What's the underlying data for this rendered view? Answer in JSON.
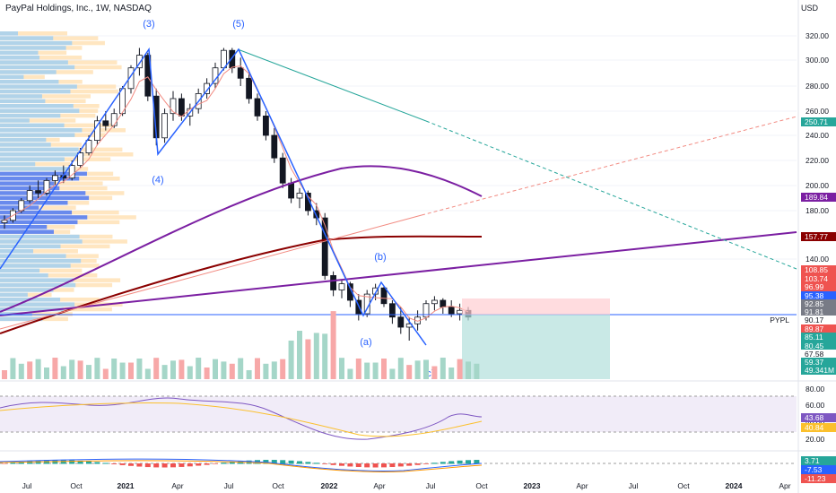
{
  "header": {
    "title": "PayPal Holdings, Inc., 1W, NASDAQ",
    "currency": "USD"
  },
  "colors": {
    "up": "#26a69a",
    "down": "#ef5350",
    "wave": "#2962ff",
    "purple": "#7b1fa2",
    "maroon": "#8b0000",
    "price_line": "#2962ff",
    "profit": "#b2dfdb",
    "loss": "#ffcdd2"
  },
  "chart_data": [
    {
      "type": "candlestick",
      "title": "PayPal Holdings, Inc., 1W, NASDAQ",
      "ylabel": "USD",
      "yticks": [
        320,
        300,
        280,
        260,
        240,
        220,
        200,
        180,
        140
      ],
      "xticks": [
        "Jul",
        "Oct",
        "2021",
        "Apr",
        "Jul",
        "Oct",
        "2022",
        "Apr",
        "Jul",
        "Oct",
        "2023",
        "Apr",
        "Jul",
        "Oct",
        "2024",
        "Apr"
      ],
      "wave_labels": [
        "(3)",
        "(5)",
        "(4)",
        "(b)",
        "(a)",
        "(c)"
      ],
      "symbol": "PYPL",
      "price_labels": [
        {
          "value": "250.71",
          "kind": "teal"
        },
        {
          "value": "189.84",
          "kind": "purple"
        },
        {
          "value": "157.77",
          "kind": "maroon"
        },
        {
          "value": "108.85",
          "kind": "red"
        },
        {
          "value": "103.74",
          "kind": "red"
        },
        {
          "value": "96.99",
          "kind": "red"
        },
        {
          "value": "95.38",
          "kind": "blue"
        },
        {
          "value": "92.85",
          "kind": "gray"
        },
        {
          "value": "91.81",
          "kind": "gray"
        },
        {
          "value": "90.17",
          "kind": "last"
        },
        {
          "value": "89.87",
          "kind": "red"
        },
        {
          "value": "85.11",
          "kind": "teal"
        },
        {
          "value": "80.45",
          "kind": "teal"
        },
        {
          "value": "67.58",
          "kind": "plain"
        },
        {
          "value": "59.37",
          "kind": "teal"
        },
        {
          "value": "49.341M",
          "kind": "teal"
        }
      ],
      "series": [
        {
          "values": [
            [
              170,
              176,
              165,
              172
            ],
            [
              172,
              182,
              170,
              180
            ],
            [
              180,
              190,
              178,
              188
            ],
            [
              188,
              200,
              186,
              196
            ],
            [
              196,
              204,
              190,
              194
            ],
            [
              194,
              206,
              192,
              204
            ],
            [
              204,
              212,
              200,
              208
            ],
            [
              208,
              216,
              202,
              206
            ],
            [
              206,
              220,
              204,
              216
            ],
            [
              216,
              230,
              214,
              226
            ],
            [
              226,
              240,
              224,
              236
            ],
            [
              236,
              256,
              232,
              252
            ],
            [
              252,
              260,
              244,
              248
            ],
            [
              248,
              262,
              246,
              258
            ],
            [
              258,
              280,
              256,
              278
            ],
            [
              278,
              296,
              274,
              294
            ],
            [
              294,
              310,
              288,
              304
            ],
            [
              304,
              306,
              268,
              272
            ],
            [
              272,
              278,
              232,
              238
            ],
            [
              238,
              262,
              234,
              258
            ],
            [
              258,
              276,
              252,
              270
            ],
            [
              270,
              274,
              252,
              256
            ],
            [
              256,
              266,
              248,
              262
            ],
            [
              262,
              278,
              258,
              274
            ],
            [
              274,
              286,
              270,
              282
            ],
            [
              282,
              298,
              278,
              294
            ],
            [
              294,
              310,
              292,
              308
            ],
            [
              308,
              310,
              290,
              294
            ],
            [
              294,
              302,
              280,
              286
            ],
            [
              286,
              292,
              266,
              270
            ],
            [
              270,
              274,
              252,
              256
            ],
            [
              256,
              260,
              236,
              240
            ],
            [
              240,
              246,
              218,
              222
            ],
            [
              222,
              226,
              198,
              202
            ],
            [
              202,
              206,
              186,
              190
            ],
            [
              190,
              198,
              182,
              194
            ],
            [
              194,
              196,
              176,
              180
            ],
            [
              180,
              186,
              168,
              174
            ],
            [
              174,
              178,
              120,
              124
            ],
            [
              124,
              128,
              104,
              110
            ],
            [
              110,
              120,
              102,
              116
            ],
            [
              116,
              118,
              96,
              100
            ],
            [
              100,
              106,
              88,
              92
            ],
            [
              92,
              110,
              90,
              106
            ],
            [
              106,
              116,
              100,
              112
            ],
            [
              112,
              114,
              96,
              98
            ],
            [
              98,
              100,
              86,
              90
            ],
            [
              90,
              96,
              80,
              84
            ],
            [
              84,
              90,
              76,
              86
            ],
            [
              86,
              94,
              82,
              90
            ],
            [
              90,
              100,
              88,
              98
            ],
            [
              98,
              104,
              94,
              100
            ],
            [
              100,
              102,
              92,
              96
            ],
            [
              96,
              100,
              90,
              92
            ],
            [
              92,
              98,
              88,
              94
            ],
            [
              94,
              96,
              88,
              90
            ]
          ]
        }
      ]
    },
    {
      "type": "line",
      "title": "",
      "yticks": [
        80.0,
        60.0,
        40.0,
        20.0
      ],
      "labels": [
        "43.68",
        "40.84"
      ]
    },
    {
      "type": "bar",
      "title": "",
      "labels": [
        "3.71",
        "-7.53",
        "-11.23"
      ]
    }
  ]
}
